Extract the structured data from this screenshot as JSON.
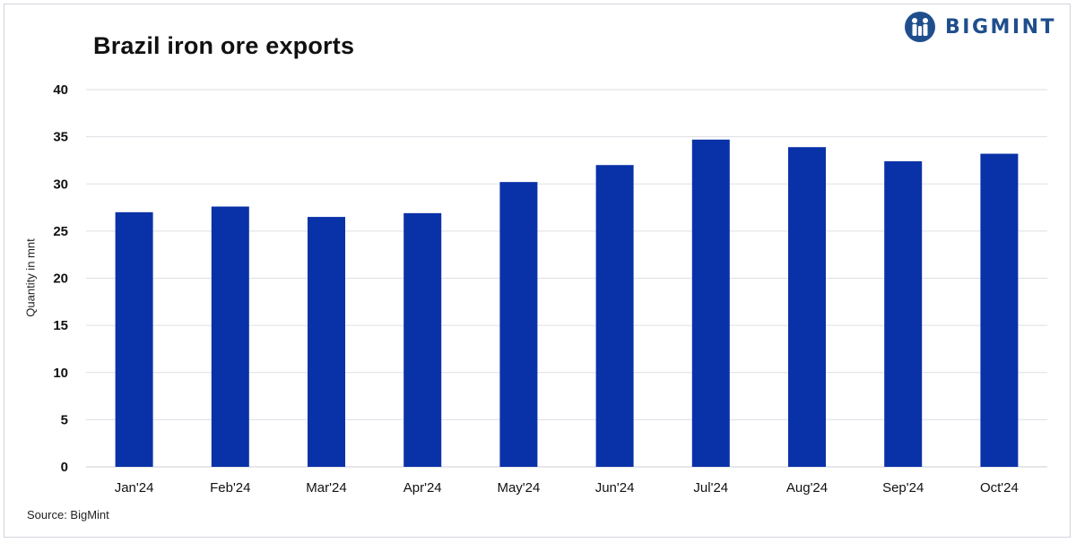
{
  "brand": {
    "name": "BIGMINT",
    "logo_icon": "bigmint-logo-icon",
    "color": "#1f4e8c"
  },
  "footer": {
    "source": "Source: BigMint"
  },
  "chart_data": {
    "type": "bar",
    "title": "Brazil iron ore exports",
    "xlabel": "",
    "ylabel": "Quantity in mnt",
    "categories": [
      "Jan'24",
      "Feb'24",
      "Mar'24",
      "Apr'24",
      "May'24",
      "Jun'24",
      "Jul'24",
      "Aug'24",
      "Sep'24",
      "Oct'24"
    ],
    "series": [
      {
        "values": [
          27.0,
          27.6,
          26.5,
          26.9,
          30.2,
          32.0,
          34.7,
          33.9,
          32.4,
          33.2
        ],
        "color": "#0a32a8"
      }
    ],
    "ylim": [
      0,
      40
    ],
    "yticks": [
      0,
      5,
      10,
      15,
      20,
      25,
      30,
      35,
      40
    ],
    "grid": true,
    "legend": "none"
  }
}
